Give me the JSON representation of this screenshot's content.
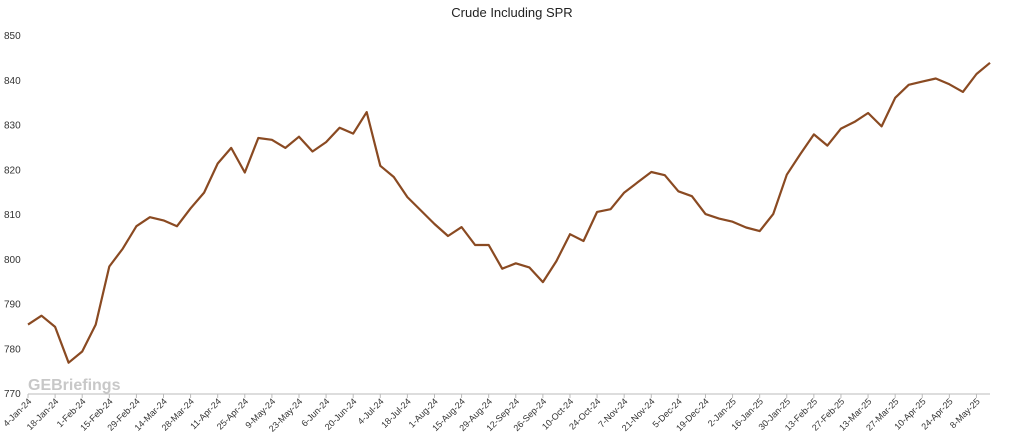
{
  "chart_data": {
    "type": "line",
    "title": "Crude Including SPR",
    "watermark": "GEBriefings",
    "categories": [
      "4-Jan-24",
      null,
      "18-Jan-24",
      null,
      "1-Feb-24",
      null,
      "15-Feb-24",
      null,
      "29-Feb-24",
      null,
      "14-Mar-24",
      null,
      "28-Mar-24",
      null,
      "11-Apr-24",
      null,
      "25-Apr-24",
      null,
      "9-May-24",
      null,
      "23-May-24",
      null,
      "6-Jun-24",
      null,
      "20-Jun-24",
      null,
      "4-Jul-24",
      null,
      "18-Jul-24",
      null,
      "1-Aug-24",
      null,
      "15-Aug-24",
      null,
      "29-Aug-24",
      null,
      "12-Sep-24",
      null,
      "26-Sep-24",
      null,
      "10-Oct-24",
      null,
      "24-Oct-24",
      null,
      "7-Nov-24",
      null,
      "21-Nov-24",
      null,
      "5-Dec-24",
      null,
      "19-Dec-24",
      null,
      "2-Jan-25",
      null,
      "16-Jan-25",
      null,
      "30-Jan-25",
      null,
      "13-Feb-25",
      null,
      "27-Feb-25",
      null,
      "13-Mar-25",
      null,
      "27-Mar-25",
      null,
      "10-Apr-25",
      null,
      "24-Apr-25",
      null,
      "8-May-25",
      null
    ],
    "values": [
      785.5,
      787.5,
      785,
      777,
      779.5,
      785.5,
      798.5,
      802.5,
      807.5,
      809.5,
      808.8,
      807.5,
      811.5,
      815,
      821.5,
      825,
      819.5,
      827.2,
      826.8,
      825,
      827.5,
      824.2,
      826.3,
      829.5,
      828.2,
      833,
      821,
      818.5,
      814,
      811,
      808,
      805.3,
      807.3,
      803.3,
      803.3,
      798,
      799.2,
      798.3,
      795,
      799.7,
      805.7,
      804.2,
      810.7,
      811.3,
      815,
      817.3,
      819.6,
      818.9,
      815.3,
      814.2,
      810.2,
      809.2,
      808.5,
      807.2,
      806.4,
      810.2,
      819,
      823.6,
      828,
      825.5,
      829.3,
      830.8,
      832.8,
      829.8,
      836.2,
      839.1,
      839.8,
      840.5,
      839.2,
      837.5,
      841.5,
      844
    ],
    "color": "#8a4a22",
    "ylim": [
      770,
      850
    ],
    "yticks": [
      770,
      780,
      790,
      800,
      810,
      820,
      830,
      840,
      850
    ],
    "grid": false
  }
}
